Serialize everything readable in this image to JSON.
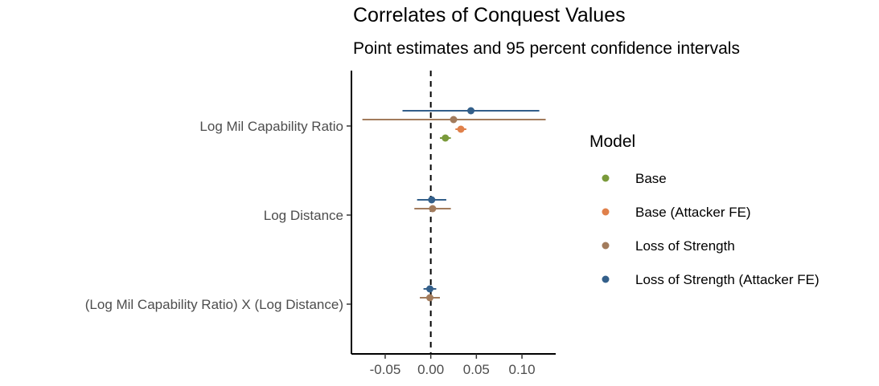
{
  "chart_data": {
    "type": "coefficient-plot",
    "title": "Correlates of Conquest Values",
    "subtitle": "Point estimates and 95 percent confidence intervals",
    "xlabel": "",
    "ylabel": "",
    "xlim": [
      -0.087,
      0.137
    ],
    "x_ticks": [
      -0.05,
      0.0,
      0.05,
      0.1
    ],
    "x_tick_labels": [
      "-0.05",
      "0.00",
      "0.05",
      "0.10"
    ],
    "reference_line_x": 0,
    "grid": false,
    "terms": [
      "Log Mil Capability Ratio",
      "Log Distance",
      "(Log Mil Capability Ratio) X (Log Distance)"
    ],
    "legend": {
      "title": "Model",
      "placement": "right"
    },
    "series": [
      {
        "name": "Base",
        "color": "#7a9a3a",
        "points": [
          {
            "term": "Log Mil Capability Ratio",
            "estimate": 0.016,
            "lower": 0.01,
            "upper": 0.022
          }
        ]
      },
      {
        "name": "Base (Attacker FE)",
        "color": "#e0804a",
        "points": [
          {
            "term": "Log Mil Capability Ratio",
            "estimate": 0.033,
            "lower": 0.027,
            "upper": 0.039
          }
        ]
      },
      {
        "name": "Loss of Strength",
        "color": "#a27b5c",
        "points": [
          {
            "term": "Log Mil Capability Ratio",
            "estimate": 0.025,
            "lower": -0.075,
            "upper": 0.126
          },
          {
            "term": "Log Distance",
            "estimate": 0.002,
            "lower": -0.018,
            "upper": 0.022
          },
          {
            "term": "(Log Mil Capability Ratio) X (Log Distance)",
            "estimate": -0.001,
            "lower": -0.012,
            "upper": 0.01
          }
        ]
      },
      {
        "name": "Loss of Strength (Attacker FE)",
        "color": "#335f8a",
        "points": [
          {
            "term": "Log Mil Capability Ratio",
            "estimate": 0.044,
            "lower": -0.031,
            "upper": 0.119
          },
          {
            "term": "Log Distance",
            "estimate": 0.001,
            "lower": -0.015,
            "upper": 0.017
          },
          {
            "term": "(Log Mil Capability Ratio) X (Log Distance)",
            "estimate": -0.001,
            "lower": -0.008,
            "upper": 0.006
          }
        ]
      }
    ]
  }
}
